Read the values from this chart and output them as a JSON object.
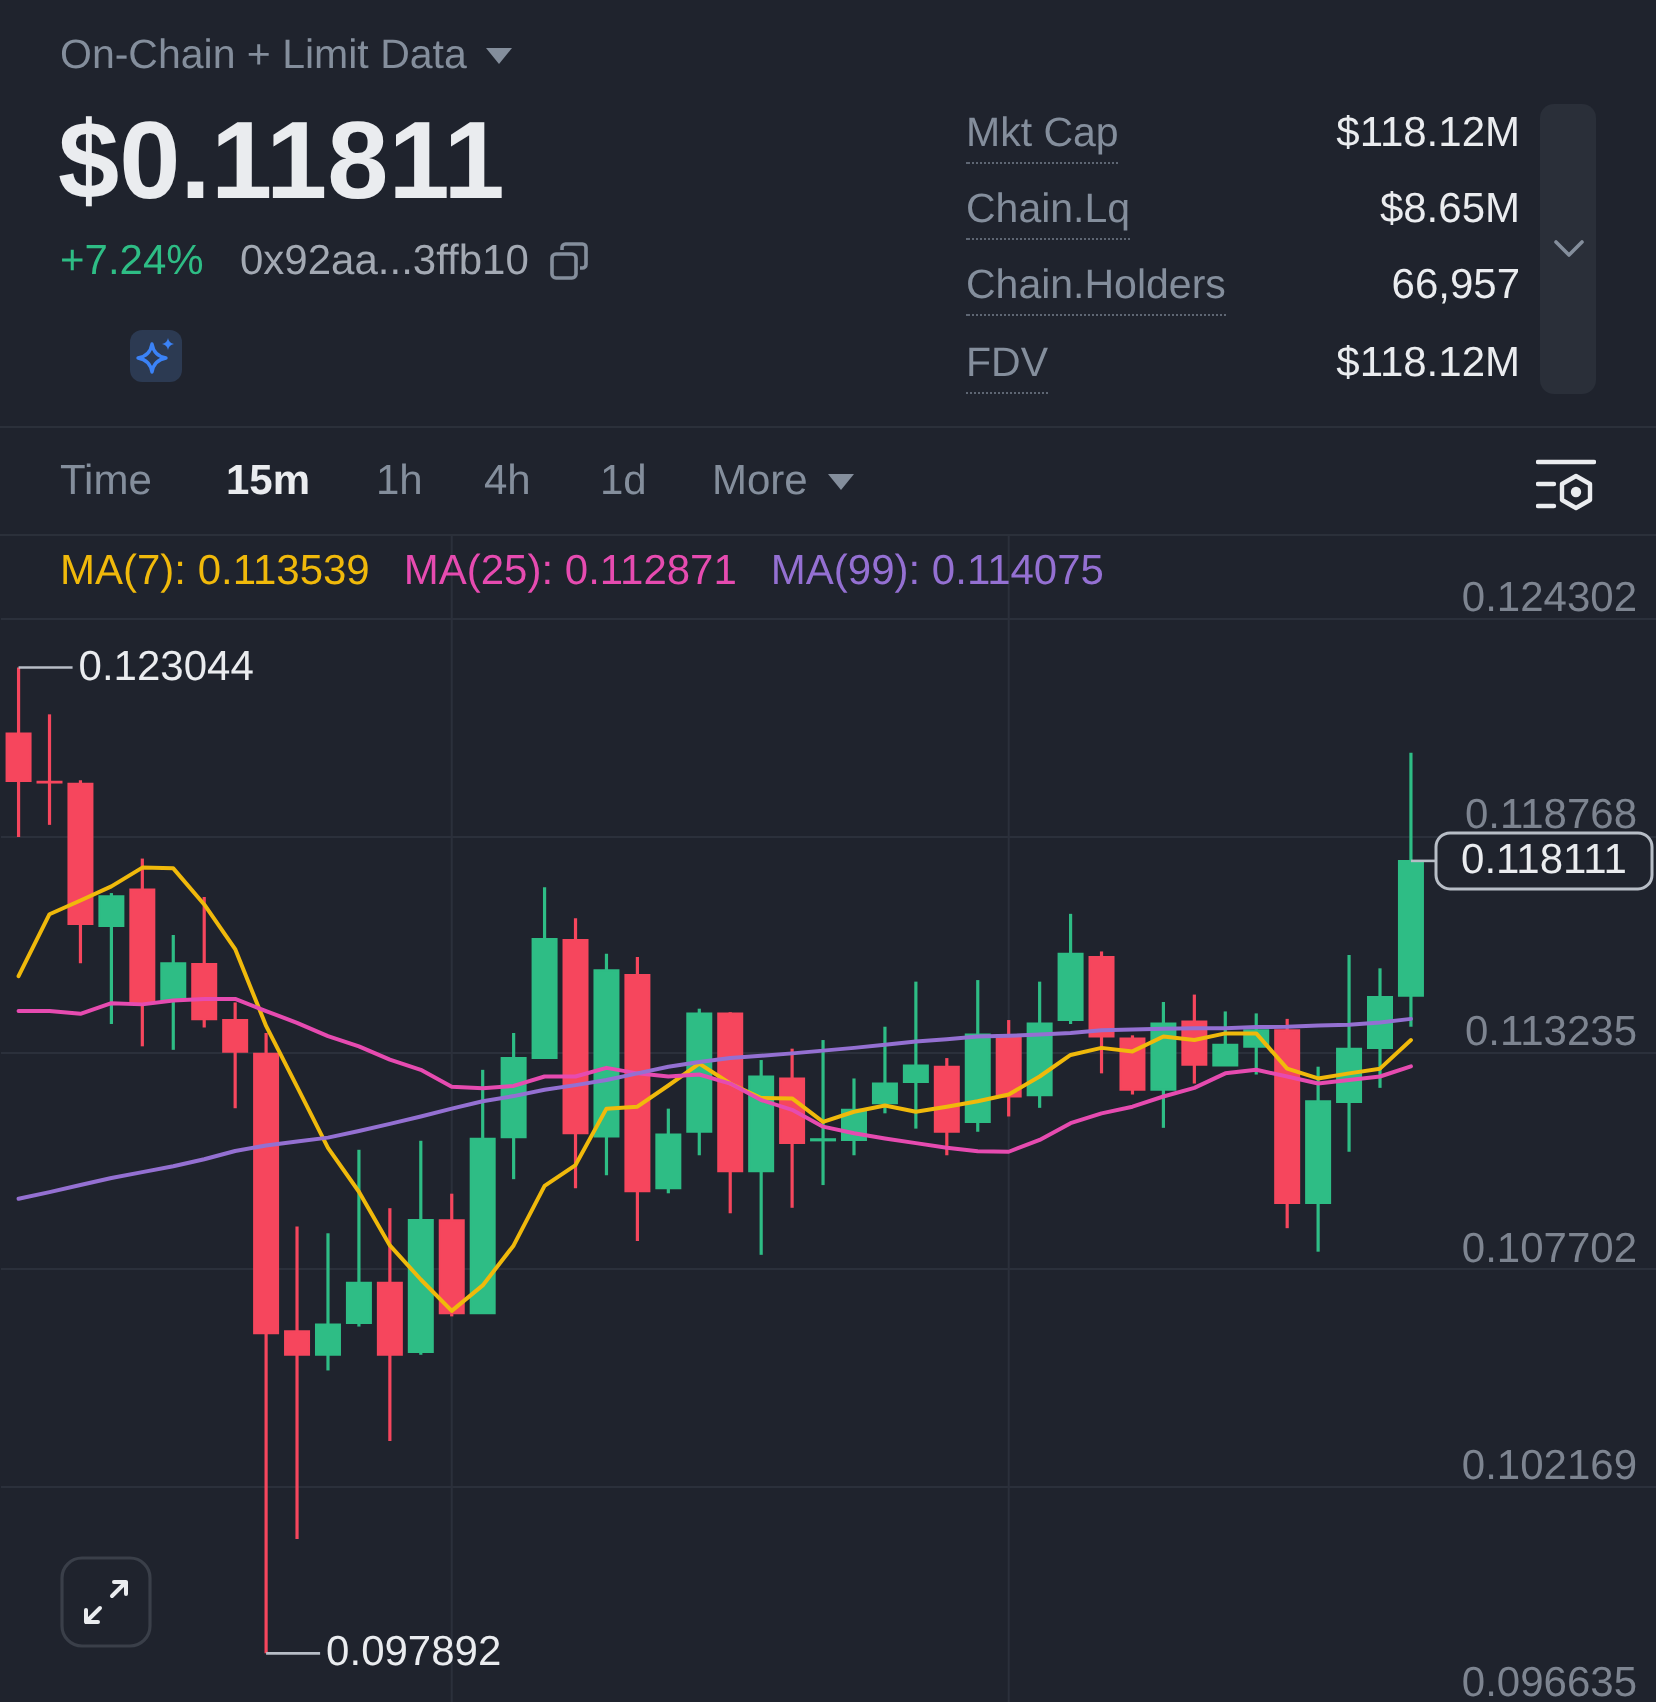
{
  "chart_data": [
    {
      "type": "other",
      "title": "On-Chain + Limit Data",
      "annotations": [
        "$0.11811",
        "+7.24%",
        "0x92aa...3ffb10",
        "Mkt Cap",
        "$118.12M",
        "Chain.Lq",
        "$8.65M",
        "Chain.Holders",
        "66,957",
        "FDV",
        "$118.12M",
        "Time",
        "15m",
        "1h",
        "4h",
        "1d",
        "More"
      ]
    },
    {
      "type": "candlestick",
      "categories": [
        null,
        null,
        null,
        null,
        null,
        null,
        null,
        null,
        null,
        null,
        null,
        null,
        null,
        null,
        null,
        null,
        null,
        null,
        null,
        null,
        null,
        null,
        null,
        null,
        null,
        null,
        null,
        null,
        null,
        null,
        null,
        null,
        null,
        null,
        null,
        null,
        null,
        null,
        null,
        null,
        null,
        null,
        null,
        null,
        null,
        null
      ],
      "ohlc": [
        [
          0.12136,
          0.123044,
          0.11872,
          0.12015
        ],
        [
          0.12013,
          0.12185,
          0.11903,
          0.12011
        ],
        [
          0.12008,
          0.12017,
          0.1155,
          0.1165
        ],
        [
          0.11645,
          0.11729,
          0.11395,
          0.11721
        ],
        [
          0.11738,
          0.11817,
          0.11338,
          0.1145
        ],
        [
          0.11457,
          0.11622,
          0.11329,
          0.1155
        ],
        [
          0.11548,
          0.11719,
          0.11386,
          0.11407
        ],
        [
          0.11405,
          0.1145,
          0.1118,
          0.11324
        ],
        [
          0.11319,
          0.11372,
          0.097892,
          0.10606
        ],
        [
          0.10611,
          0.10878,
          0.10081,
          0.10551
        ],
        [
          0.10551,
          0.10861,
          0.10511,
          0.10628
        ],
        [
          0.10632,
          0.11074,
          0.10623,
          0.10735
        ],
        [
          0.10735,
          0.10925,
          0.10331,
          0.10551
        ],
        [
          0.10558,
          0.11097,
          0.10551,
          0.10895
        ],
        [
          0.10894,
          0.10962,
          0.10649,
          0.10657
        ],
        [
          0.10657,
          0.11278,
          0.10657,
          0.11102
        ],
        [
          0.11106,
          0.11372,
          0.10999,
          0.11308
        ],
        [
          0.11308,
          0.11744,
          0.11308,
          0.11612
        ],
        [
          0.11609,
          0.11665,
          0.10976,
          0.11116
        ],
        [
          0.11108,
          0.11574,
          0.11009,
          0.11532
        ],
        [
          0.1152,
          0.11566,
          0.10841,
          0.10968
        ],
        [
          0.10976,
          0.11179,
          0.10963,
          0.11113
        ],
        [
          0.1112,
          0.11434,
          0.1106,
          0.11422
        ],
        [
          0.11422,
          0.11425,
          0.10912,
          0.11019
        ],
        [
          0.11019,
          0.11303,
          0.10806,
          0.11261
        ],
        [
          0.11256,
          0.11332,
          0.10926,
          0.11091
        ],
        [
          0.11098,
          0.11354,
          0.10984,
          0.11101
        ],
        [
          0.11099,
          0.11256,
          0.1106,
          0.11176
        ],
        [
          0.11193,
          0.11388,
          0.11167,
          0.11243
        ],
        [
          0.11247,
          0.11503,
          0.11128,
          0.11289
        ],
        [
          0.11286,
          0.11308,
          0.1106,
          0.1112
        ],
        [
          0.11145,
          0.11507,
          0.1112,
          0.11368
        ],
        [
          0.11366,
          0.11405,
          0.11159,
          0.1121
        ],
        [
          0.11213,
          0.11503,
          0.11181,
          0.11396
        ],
        [
          0.11405,
          0.11676,
          0.11395,
          0.11574
        ],
        [
          0.11566,
          0.1158,
          0.11269,
          0.11363
        ],
        [
          0.11358,
          0.11366,
          0.11215,
          0.11227
        ],
        [
          0.11227,
          0.11451,
          0.1113,
          0.11396
        ],
        [
          0.11401,
          0.1147,
          0.11243,
          0.11291
        ],
        [
          0.11289,
          0.11427,
          0.11289,
          0.11342
        ],
        [
          0.11337,
          0.11422,
          0.11266,
          0.11379
        ],
        [
          0.11379,
          0.11408,
          0.10874,
          0.10938
        ],
        [
          0.10938,
          0.11286,
          0.10814,
          0.11198
        ],
        [
          0.11196,
          0.11571,
          0.11069,
          0.11332
        ],
        [
          0.11334,
          0.11537,
          0.11232,
          0.11464
        ],
        [
          0.11467,
          0.12087,
          0.11388,
          0.118111
        ]
      ],
      "colors": [
        "#f6465d",
        "#f6465d",
        "#f6465d",
        "#2ebd85",
        "#f6465d",
        "#2ebd85",
        "#f6465d",
        "#f6465d",
        "#f6465d",
        "#f6465d",
        "#2ebd85",
        "#2ebd85",
        "#f6465d",
        "#2ebd85",
        "#f6465d",
        "#2ebd85",
        "#2ebd85",
        "#2ebd85",
        "#f6465d",
        "#2ebd85",
        "#f6465d",
        "#2ebd85",
        "#2ebd85",
        "#f6465d",
        "#2ebd85",
        "#f6465d",
        "#2ebd85",
        "#2ebd85",
        "#2ebd85",
        "#2ebd85",
        "#f6465d",
        "#2ebd85",
        "#f6465d",
        "#2ebd85",
        "#2ebd85",
        "#f6465d",
        "#f6465d",
        "#2ebd85",
        "#f6465d",
        "#2ebd85",
        "#2ebd85",
        "#f6465d",
        "#2ebd85",
        "#2ebd85",
        "#2ebd85",
        "#2ebd85"
      ],
      "series": [
        {
          "name": "MA(7): 0.113539",
          "type": "line",
          "color": "#f0b90b",
          "values": [
            0.11517,
            0.11675,
            0.1171,
            0.11746,
            0.11794,
            0.11792,
            0.117,
            0.11586,
            0.1139,
            0.11235,
            0.11079,
            0.10967,
            0.1083,
            0.10743,
            0.10663,
            0.10728,
            0.1083,
            0.10982,
            0.11035,
            0.11179,
            0.11184,
            0.11238,
            0.11294,
            0.11243,
            0.11206,
            0.11205,
            0.11145,
            0.11171,
            0.11187,
            0.11171,
            0.11184,
            0.11198,
            0.11215,
            0.11261,
            0.11316,
            0.11334,
            0.11325,
            0.11363,
            0.11354,
            0.11371,
            0.11371,
            0.11281,
            0.11256,
            0.11269,
            0.11281,
            0.11354
          ]
        },
        {
          "name": "MA(25): 0.112871",
          "type": "line",
          "color": "#e64bb0",
          "values": [
            0.11428,
            0.11428,
            0.11421,
            0.11448,
            0.11445,
            0.11455,
            0.11459,
            0.11459,
            0.11428,
            0.11398,
            0.11364,
            0.11338,
            0.11304,
            0.11278,
            0.11235,
            0.11231,
            0.11237,
            0.11261,
            0.11261,
            0.11283,
            0.11269,
            0.11261,
            0.11266,
            0.11243,
            0.11201,
            0.11176,
            0.11133,
            0.11116,
            0.11103,
            0.11091,
            0.11079,
            0.1107,
            0.11069,
            0.11099,
            0.11142,
            0.11167,
            0.11184,
            0.1121,
            0.11232,
            0.11269,
            0.11278,
            0.11261,
            0.11243,
            0.11252,
            0.11261,
            0.11287
          ]
        },
        {
          "name": "MA(99): 0.114075",
          "type": "line",
          "color": "#9470d2",
          "values": [
            0.10949,
            0.10966,
            0.10984,
            0.11002,
            0.11017,
            0.11032,
            0.1105,
            0.11071,
            0.11085,
            0.11095,
            0.11105,
            0.11122,
            0.1114,
            0.11159,
            0.11179,
            0.11198,
            0.11211,
            0.11227,
            0.11239,
            0.11252,
            0.11269,
            0.11286,
            0.11298,
            0.11308,
            0.11314,
            0.1132,
            0.11327,
            0.11334,
            0.11342,
            0.1135,
            0.11356,
            0.11363,
            0.11365,
            0.11368,
            0.11372,
            0.11379,
            0.11381,
            0.11383,
            0.11384,
            0.11384,
            0.11387,
            0.11388,
            0.11391,
            0.11393,
            0.11399,
            0.11408
          ]
        }
      ],
      "ylim": [
        0.0966,
        0.1264
      ],
      "yticks": [
        0.096635,
        0.102169,
        0.107702,
        0.113235,
        0.118768,
        0.124302
      ],
      "grid": true,
      "tick_labels": "y",
      "annotations": [
        "0.123044",
        "0.097892",
        "0.118111"
      ]
    }
  ]
}
